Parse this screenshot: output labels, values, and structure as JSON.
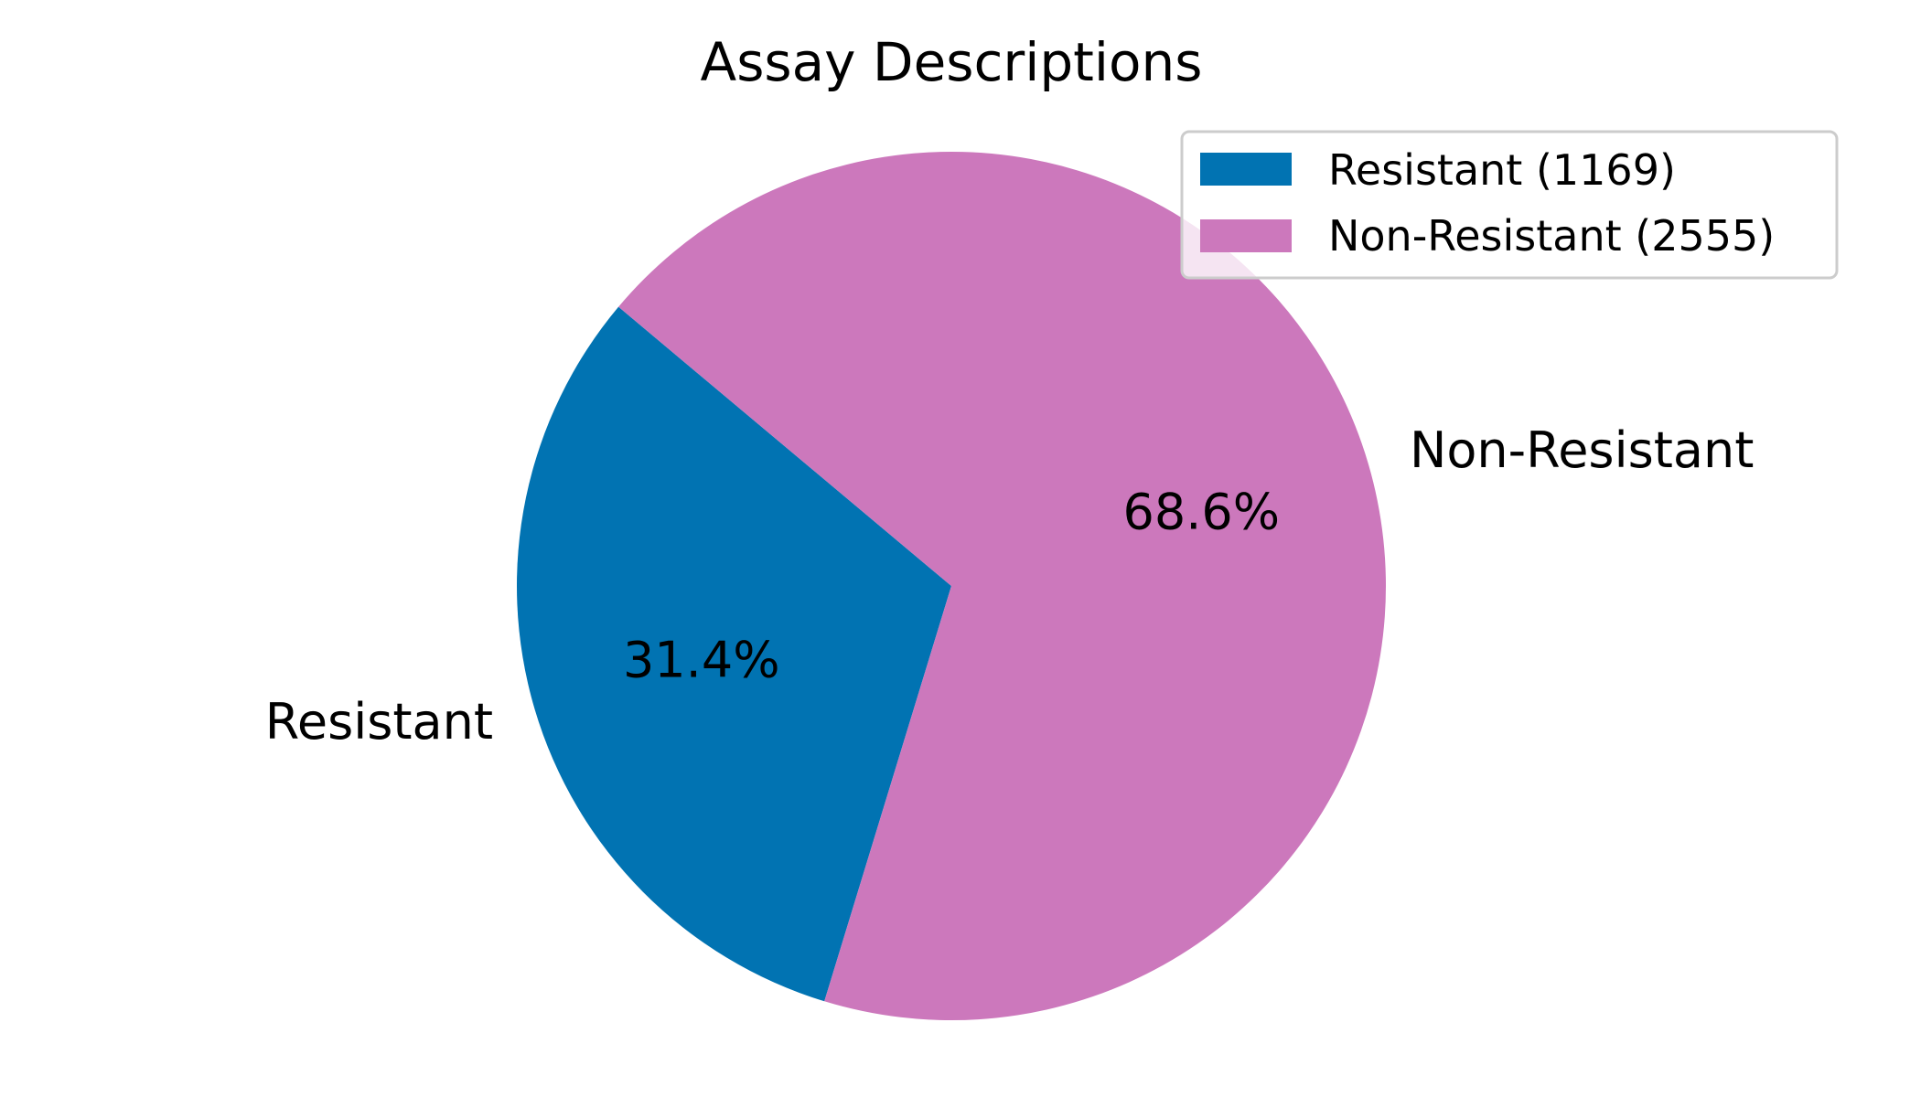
{
  "chart_data": {
    "type": "pie",
    "title": "Assay Descriptions",
    "slices": [
      {
        "label": "Resistant",
        "value": 1169,
        "percent_label": "31.4%",
        "legend_label": "Resistant (1169)",
        "color": "#0173b2"
      },
      {
        "label": "Non-Resistant",
        "value": 2555,
        "percent_label": "68.6%",
        "legend_label": "Non-Resistant (2555)",
        "color": "#cc78bc"
      }
    ],
    "legend_position": "top-right"
  }
}
